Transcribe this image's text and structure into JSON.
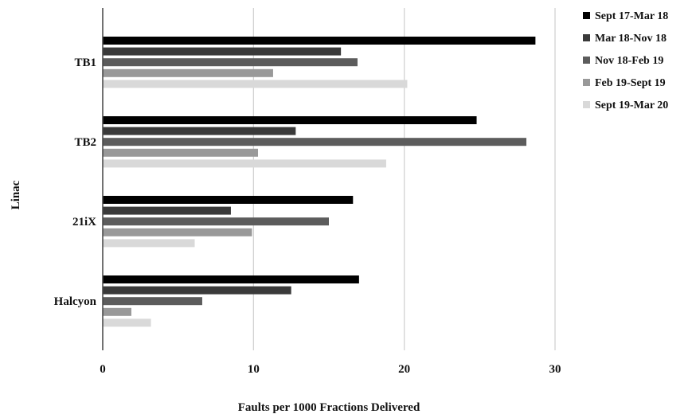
{
  "chart_data": {
    "type": "bar",
    "orientation": "horizontal",
    "title": "",
    "xlabel": "Faults per 1000 Fractions Delivered",
    "ylabel": "Linac",
    "xlim": [
      0,
      30
    ],
    "xticks": [
      "0",
      "10",
      "20",
      "30"
    ],
    "grid": "vertical",
    "legend_position": "top-right",
    "categories": [
      "TB1",
      "TB2",
      "21iX",
      "Halcyon"
    ],
    "series": [
      {
        "name": "Sept 17-Mar 18",
        "color": "#000000",
        "values": [
          28.7,
          24.8,
          16.6,
          17.0
        ]
      },
      {
        "name": "Mar 18-Nov 18",
        "color": "#3a3a3a",
        "values": [
          15.8,
          12.8,
          8.5,
          12.5
        ]
      },
      {
        "name": "Nov 18-Feb 19",
        "color": "#5c5c5c",
        "values": [
          16.9,
          28.1,
          15.0,
          6.6
        ]
      },
      {
        "name": "Feb 19-Sept 19",
        "color": "#999999",
        "values": [
          11.3,
          10.3,
          9.9,
          1.9
        ]
      },
      {
        "name": "Sept 19-Mar 20",
        "color": "#d9d9d9",
        "values": [
          20.2,
          18.8,
          6.1,
          3.2
        ]
      }
    ]
  }
}
